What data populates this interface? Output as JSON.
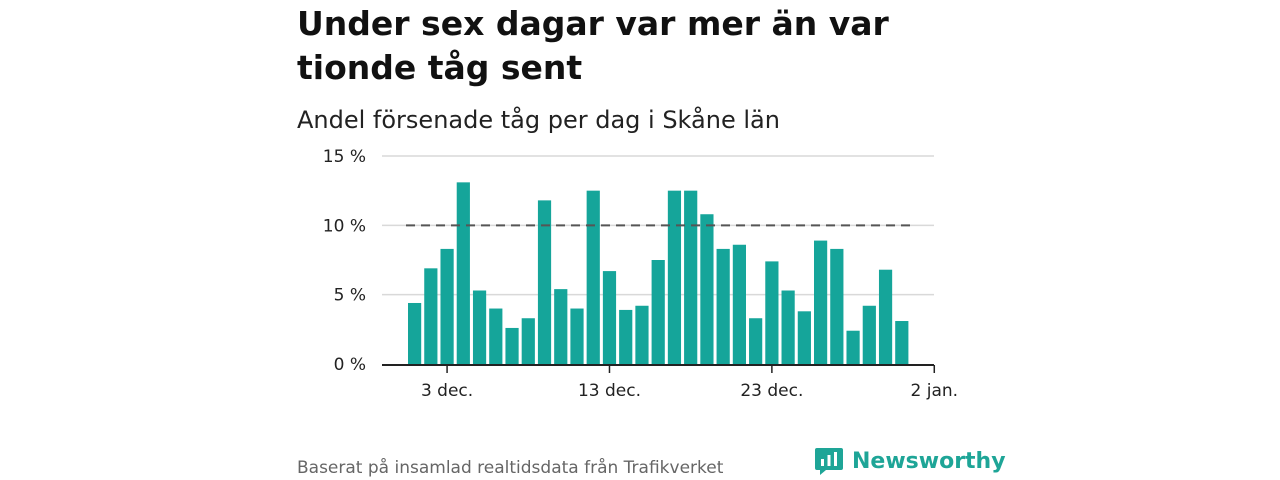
{
  "header": {
    "title": "Under sex dagar var mer än var tionde tåg sent",
    "subtitle": "Andel försenade tåg per dag i Skåne län"
  },
  "footer": {
    "source": "Baserat på insamlad realtidsdata från Trafikverket",
    "brand": "Newsworthy"
  },
  "colors": {
    "bar": "#15a59a",
    "reference_line": "#555555",
    "grid": "#d9d9d9",
    "brand": "#1ea597"
  },
  "chart_data": {
    "type": "bar",
    "categories": [
      "2025-12-01",
      "2025-12-02",
      "2025-12-03",
      "2025-12-04",
      "2025-12-05",
      "2025-12-06",
      "2025-12-07",
      "2025-12-08",
      "2025-12-09",
      "2025-12-10",
      "2025-12-11",
      "2025-12-12",
      "2025-12-13",
      "2025-12-14",
      "2025-12-15",
      "2025-12-16",
      "2025-12-17",
      "2025-12-18",
      "2025-12-19",
      "2025-12-20",
      "2025-12-21",
      "2025-12-22",
      "2025-12-23",
      "2025-12-24",
      "2025-12-25",
      "2025-12-26",
      "2025-12-27",
      "2025-12-28",
      "2025-12-29",
      "2025-12-30",
      "2025-12-31"
    ],
    "values": [
      4.4,
      6.9,
      8.3,
      13.1,
      5.3,
      4.0,
      2.6,
      3.3,
      11.8,
      5.4,
      4.0,
      12.5,
      6.7,
      3.9,
      4.2,
      7.5,
      12.5,
      12.5,
      10.8,
      8.3,
      8.6,
      3.3,
      7.4,
      5.3,
      3.8,
      8.9,
      8.3,
      2.4,
      4.2,
      6.8,
      3.1
    ],
    "reference_value": 10,
    "y_ticks": [
      {
        "value": 0,
        "label": "0 %"
      },
      {
        "value": 5,
        "label": "5 %"
      },
      {
        "value": 10,
        "label": "10 %"
      },
      {
        "value": 15,
        "label": "15 %"
      }
    ],
    "x_ticks": [
      {
        "index": 2,
        "label": "3 dec."
      },
      {
        "index": 12,
        "label": "13 dec."
      },
      {
        "index": 22,
        "label": "23 dec."
      },
      {
        "index": 32,
        "label": "2 jan."
      }
    ],
    "ylim": [
      0,
      15
    ],
    "grid": true,
    "title": "Under sex dagar var mer än var tionde tåg sent",
    "subtitle": "Andel försenade tåg per dag i Skåne län"
  }
}
